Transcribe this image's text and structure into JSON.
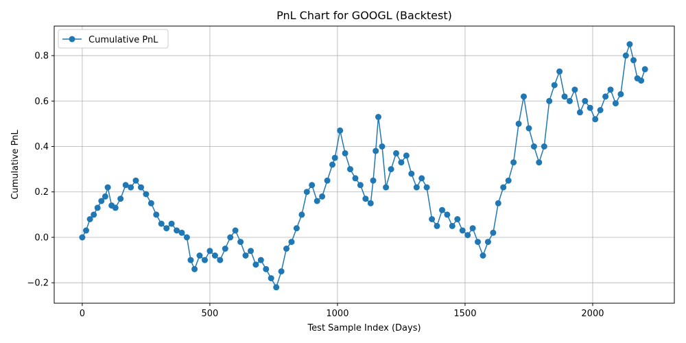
{
  "chart_data": {
    "type": "line",
    "title": "PnL Chart for GOOGL (Backtest)",
    "xlabel": "Test Sample Index (Days)",
    "ylabel": "Cumulative PnL",
    "xlim": [
      -110,
      2320
    ],
    "ylim": [
      -0.29,
      0.93
    ],
    "xticks": [
      0,
      500,
      1000,
      1500,
      2000
    ],
    "xtick_labels": [
      "0",
      "500",
      "1000",
      "1500",
      "2000"
    ],
    "yticks": [
      -0.2,
      0.0,
      0.2,
      0.4,
      0.6,
      0.8
    ],
    "ytick_labels": [
      "−0.2",
      "0.0",
      "0.2",
      "0.4",
      "0.6",
      "0.8"
    ],
    "grid": true,
    "legend_position": "upper-left",
    "series": [
      {
        "name": "Cumulative PnL",
        "color": "#1f77b4",
        "marker": "circle",
        "x": [
          0,
          15,
          30,
          45,
          60,
          75,
          90,
          100,
          115,
          130,
          150,
          170,
          190,
          210,
          230,
          250,
          270,
          290,
          310,
          330,
          350,
          370,
          390,
          410,
          425,
          440,
          460,
          480,
          500,
          520,
          540,
          560,
          580,
          600,
          620,
          640,
          660,
          680,
          700,
          720,
          740,
          760,
          780,
          800,
          820,
          840,
          860,
          880,
          900,
          920,
          940,
          960,
          980,
          990,
          1010,
          1030,
          1050,
          1070,
          1090,
          1110,
          1130,
          1140,
          1150,
          1160,
          1175,
          1190,
          1210,
          1230,
          1250,
          1270,
          1290,
          1310,
          1330,
          1350,
          1370,
          1390,
          1410,
          1430,
          1450,
          1470,
          1490,
          1510,
          1530,
          1550,
          1570,
          1590,
          1610,
          1630,
          1650,
          1670,
          1690,
          1710,
          1730,
          1750,
          1770,
          1790,
          1810,
          1830,
          1850,
          1870,
          1890,
          1910,
          1930,
          1950,
          1970,
          1990,
          2010,
          2030,
          2050,
          2070,
          2090,
          2110,
          2130,
          2145,
          2160,
          2175,
          2190,
          2205
        ],
        "y": [
          0.0,
          0.03,
          0.08,
          0.1,
          0.13,
          0.16,
          0.18,
          0.22,
          0.14,
          0.13,
          0.17,
          0.23,
          0.22,
          0.25,
          0.22,
          0.19,
          0.15,
          0.1,
          0.06,
          0.04,
          0.06,
          0.03,
          0.02,
          0.0,
          -0.1,
          -0.14,
          -0.08,
          -0.1,
          -0.06,
          -0.08,
          -0.1,
          -0.05,
          0.0,
          0.03,
          -0.02,
          -0.08,
          -0.06,
          -0.12,
          -0.1,
          -0.14,
          -0.18,
          -0.22,
          -0.15,
          -0.05,
          -0.02,
          0.04,
          0.1,
          0.2,
          0.23,
          0.16,
          0.18,
          0.25,
          0.32,
          0.35,
          0.47,
          0.37,
          0.3,
          0.26,
          0.23,
          0.17,
          0.15,
          0.25,
          0.38,
          0.53,
          0.4,
          0.22,
          0.3,
          0.37,
          0.33,
          0.36,
          0.28,
          0.22,
          0.26,
          0.22,
          0.08,
          0.05,
          0.12,
          0.1,
          0.05,
          0.08,
          0.03,
          0.01,
          0.04,
          -0.02,
          -0.08,
          -0.02,
          0.02,
          0.15,
          0.22,
          0.25,
          0.33,
          0.5,
          0.62,
          0.48,
          0.4,
          0.33,
          0.4,
          0.6,
          0.67,
          0.73,
          0.62,
          0.6,
          0.65,
          0.55,
          0.6,
          0.57,
          0.52,
          0.56,
          0.62,
          0.65,
          0.59,
          0.63,
          0.8,
          0.85,
          0.78,
          0.7,
          0.69,
          0.74
        ]
      }
    ]
  }
}
